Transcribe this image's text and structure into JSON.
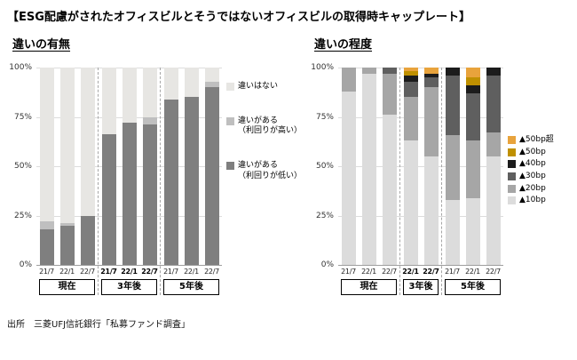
{
  "page": {
    "title": "【ESG配慮がされたオフィスビルとそうではないオフィスビルの取得時キャップレート】",
    "source": "出所　三菱UFJ信託銀行「私募ファンド調査」"
  },
  "chart_data": [
    {
      "type": "bar",
      "variant": "stacked-100percent-column",
      "title": "違いの有無",
      "ylabel": "",
      "xlabel": "",
      "ylim": [
        0,
        100
      ],
      "yticks": [
        "100%",
        "75%",
        "50%",
        "25%",
        "0%"
      ],
      "grid": true,
      "legend_position": "right",
      "groups": [
        {
          "label": "現在",
          "ticks": [
            "21/7",
            "22/1",
            "22/7"
          ],
          "bold_ticks": false
        },
        {
          "label": "3年後",
          "ticks": [
            "21/7",
            "22/1",
            "22/7"
          ],
          "bold_ticks": true
        },
        {
          "label": "5年後",
          "ticks": [
            "21/7",
            "22/1",
            "22/7"
          ],
          "bold_ticks": false
        }
      ],
      "series": [
        {
          "name": "違いがある\n（利回りが低い）",
          "color": "#7f7f7f",
          "values": [
            18,
            20,
            25,
            66,
            72,
            71,
            84,
            85,
            90
          ]
        },
        {
          "name": "違いがある\n（利回りが高い）",
          "color": "#bfbfbf",
          "values": [
            4,
            1,
            0,
            0,
            0,
            4,
            0,
            0,
            3
          ]
        },
        {
          "name": "違いはない",
          "color": "#e7e6e3",
          "values": [
            78,
            79,
            75,
            34,
            28,
            25,
            16,
            15,
            7
          ]
        }
      ]
    },
    {
      "type": "bar",
      "variant": "stacked-100percent-column",
      "title": "違いの程度",
      "ylabel": "",
      "xlabel": "",
      "ylim": [
        0,
        100
      ],
      "yticks": [
        "100%",
        "75%",
        "50%",
        "25%",
        "0%"
      ],
      "grid": true,
      "legend_position": "right",
      "groups": [
        {
          "label": "現在",
          "ticks": [
            "21/7",
            "22/1",
            "22/7"
          ],
          "bold_ticks": false
        },
        {
          "label": "3年後",
          "ticks": [
            "22/1",
            "22/7"
          ],
          "bold_ticks": true
        },
        {
          "label": "5年後",
          "ticks": [
            "21/7",
            "22/1",
            "22/7"
          ],
          "bold_ticks": false
        }
      ],
      "series": [
        {
          "name": "▲10bp",
          "color": "#dcdcdc",
          "values": [
            88,
            97,
            76,
            63,
            55,
            33,
            34,
            55
          ]
        },
        {
          "name": "▲20bp",
          "color": "#a6a6a6",
          "values": [
            12,
            3,
            21,
            22,
            35,
            33,
            29,
            12
          ]
        },
        {
          "name": "▲30bp",
          "color": "#5f5f5f",
          "values": [
            0,
            0,
            3,
            8,
            5,
            30,
            24,
            29
          ]
        },
        {
          "name": "▲40bp",
          "color": "#1c1c1c",
          "values": [
            0,
            0,
            0,
            3,
            2,
            4,
            4,
            4
          ]
        },
        {
          "name": "▲50bp",
          "color": "#bf9000",
          "values": [
            0,
            0,
            0,
            2,
            0,
            0,
            4,
            0
          ]
        },
        {
          "name": "▲50bp超",
          "color": "#e8a33c",
          "values": [
            0,
            0,
            0,
            2,
            3,
            0,
            5,
            0
          ]
        }
      ]
    }
  ]
}
